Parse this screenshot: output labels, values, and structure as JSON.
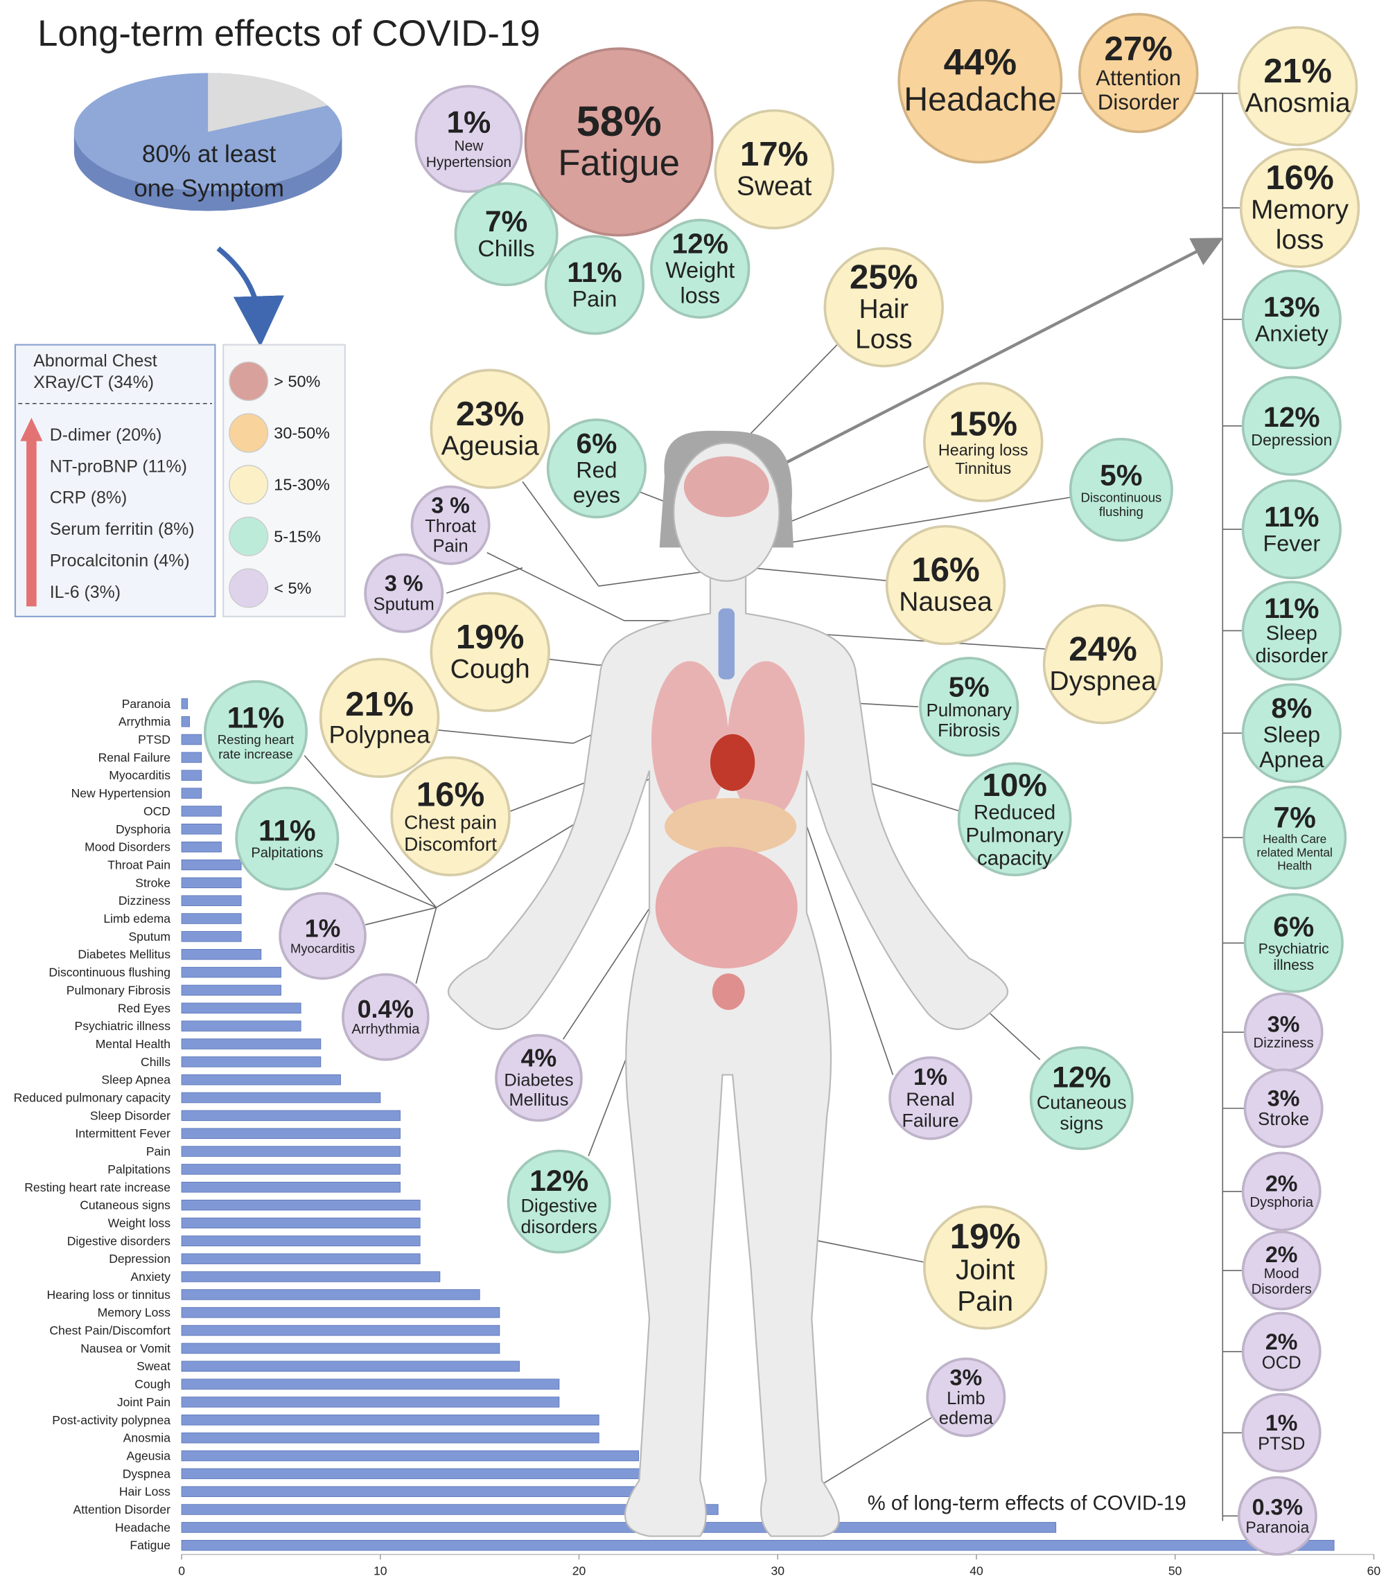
{
  "title": "Long-term effects of COVID-19",
  "pie": {
    "lines": [
      "80% at least",
      "one Symptom"
    ]
  },
  "chest_panel": {
    "header": [
      "Abnormal Chest",
      "XRay/CT (34%)"
    ],
    "items": [
      "D-dimer (20%)",
      "NT-proBNP (11%)",
      "CRP (8%)",
      "Serum ferritin (8%)",
      "Procalcitonin (4%)",
      "IL-6 (3%)"
    ]
  },
  "legend": {
    "items": [
      {
        "label": "> 50%",
        "color": "#d9a19c"
      },
      {
        "label": "30-50%",
        "color": "#f8d39b"
      },
      {
        "label": "15-30%",
        "color": "#fcf0c6"
      },
      {
        "label": "5-15%",
        "color": "#bcebda"
      },
      {
        "label": "< 5%",
        "color": "#dfd3ec"
      }
    ]
  },
  "bubbles": [
    {
      "percent": "58%",
      "label": [
        "Fatigue"
      ]
    },
    {
      "percent": "1%",
      "label": [
        "New",
        "Hypertension"
      ]
    },
    {
      "percent": "17%",
      "label": [
        "Sweat"
      ]
    },
    {
      "percent": "7%",
      "label": [
        "Chills"
      ]
    },
    {
      "percent": "11%",
      "label": [
        "Pain"
      ]
    },
    {
      "percent": "12%",
      "label": [
        "Weight",
        "loss"
      ]
    },
    {
      "percent": "44%",
      "label": [
        "Headache"
      ]
    },
    {
      "percent": "27%",
      "label": [
        "Attention",
        "Disorder"
      ]
    },
    {
      "percent": "21%",
      "label": [
        "Anosmia"
      ]
    },
    {
      "percent": "16%",
      "label": [
        "Memory",
        "loss"
      ]
    },
    {
      "percent": "13%",
      "label": [
        "Anxiety"
      ]
    },
    {
      "percent": "12%",
      "label": [
        "Depression"
      ]
    },
    {
      "percent": "11%",
      "label": [
        "Fever"
      ]
    },
    {
      "percent": "11%",
      "label": [
        "Sleep",
        "disorder"
      ]
    },
    {
      "percent": "8%",
      "label": [
        "Sleep",
        "Apnea"
      ]
    },
    {
      "percent": "7%",
      "label": [
        "Health Care",
        "related Mental",
        "Health"
      ]
    },
    {
      "percent": "6%",
      "label": [
        "Psychiatric",
        "illness"
      ]
    },
    {
      "percent": "3%",
      "label": [
        "Dizziness"
      ]
    },
    {
      "percent": "3%",
      "label": [
        "Stroke"
      ]
    },
    {
      "percent": "2%",
      "label": [
        "Dysphoria"
      ]
    },
    {
      "percent": "2%",
      "label": [
        "Mood",
        "Disorders"
      ]
    },
    {
      "percent": "2%",
      "label": [
        "OCD"
      ]
    },
    {
      "percent": "1%",
      "label": [
        "PTSD"
      ]
    },
    {
      "percent": "0.3%",
      "label": [
        "Paranoia"
      ]
    },
    {
      "percent": "25%",
      "label": [
        "Hair",
        "Loss"
      ]
    },
    {
      "percent": "23%",
      "label": [
        "Ageusia"
      ]
    },
    {
      "percent": "6%",
      "label": [
        "Red",
        "eyes"
      ]
    },
    {
      "percent": "15%",
      "label": [
        "Hearing loss",
        "Tinnitus"
      ]
    },
    {
      "percent": "5%",
      "label": [
        "Discontinuous",
        "flushing"
      ]
    },
    {
      "percent": "3 %",
      "label": [
        "Throat",
        "Pain"
      ]
    },
    {
      "percent": "3 %",
      "label": [
        "Sputum"
      ]
    },
    {
      "percent": "16%",
      "label": [
        "Nausea"
      ]
    },
    {
      "percent": "19%",
      "label": [
        "Cough"
      ]
    },
    {
      "percent": "24%",
      "label": [
        "Dyspnea"
      ]
    },
    {
      "percent": "21%",
      "label": [
        "Polypnea"
      ]
    },
    {
      "percent": "11%",
      "label": [
        "Resting heart",
        "rate increase"
      ]
    },
    {
      "percent": "5%",
      "label": [
        "Pulmonary",
        "Fibrosis"
      ]
    },
    {
      "percent": "16%",
      "label": [
        "Chest pain",
        "Discomfort"
      ]
    },
    {
      "percent": "11%",
      "label": [
        "Palpitations"
      ]
    },
    {
      "percent": "10%",
      "label": [
        "Reduced",
        "Pulmonary",
        "capacity"
      ]
    },
    {
      "percent": "1%",
      "label": [
        "Myocarditis"
      ]
    },
    {
      "percent": "0.4%",
      "label": [
        "Arrhythmia"
      ]
    },
    {
      "percent": "4%",
      "label": [
        "Diabetes",
        "Mellitus"
      ]
    },
    {
      "percent": "1%",
      "label": [
        "Renal",
        "Failure"
      ]
    },
    {
      "percent": "12%",
      "label": [
        "Cutaneous",
        "signs"
      ]
    },
    {
      "percent": "12%",
      "label": [
        "Digestive",
        "disorders"
      ]
    },
    {
      "percent": "19%",
      "label": [
        "Joint",
        "Pain"
      ]
    },
    {
      "percent": "3%",
      "label": [
        "Limb",
        "edema"
      ]
    }
  ],
  "chart_data": {
    "type": "bar",
    "orientation": "horizontal",
    "categories": [
      "Paranoia",
      "Arrythmia",
      "PTSD",
      "Renal Failure",
      "Myocarditis",
      "New Hypertension",
      "OCD",
      "Dysphoria",
      "Mood Disorders",
      "Throat Pain",
      "Stroke",
      "Dizziness",
      "Limb edema",
      "Sputum",
      "Diabetes Mellitus",
      "Discontinuous flushing",
      "Pulmonary Fibrosis",
      "Red Eyes",
      "Psychiatric illness",
      "Mental Health",
      "Chills",
      "Sleep Apnea",
      "Reduced pulmonary capacity",
      "Sleep Disorder",
      "Intermittent Fever",
      "Pain",
      "Palpitations",
      "Resting heart rate increase",
      "Cutaneous signs",
      "Weight loss",
      "Digestive disorders",
      "Depression",
      "Anxiety",
      "Hearing loss or tinnitus",
      "Memory Loss",
      "Chest Pain/Discomfort",
      "Nausea or Vomit",
      "Sweat",
      "Cough",
      "Joint Pain",
      "Post-activity polypnea",
      "Anosmia",
      "Ageusia",
      "Dyspnea",
      "Hair Loss",
      "Attention Disorder",
      "Headache",
      "Fatigue"
    ],
    "values": [
      0.3,
      0.4,
      1,
      1,
      1,
      1,
      2,
      2,
      2,
      3,
      3,
      3,
      3,
      3,
      4,
      5,
      5,
      6,
      6,
      7,
      7,
      8,
      10,
      11,
      11,
      11,
      11,
      11,
      12,
      12,
      12,
      12,
      13,
      15,
      16,
      16,
      16,
      17,
      19,
      19,
      21,
      21,
      23,
      24,
      25,
      27,
      44,
      58
    ],
    "color": "#8099d6",
    "xlim": [
      0,
      60
    ],
    "xticks": [
      0,
      10,
      20,
      30,
      40,
      50,
      60
    ],
    "xlabel": "% of long-term effects of COVID-19"
  }
}
